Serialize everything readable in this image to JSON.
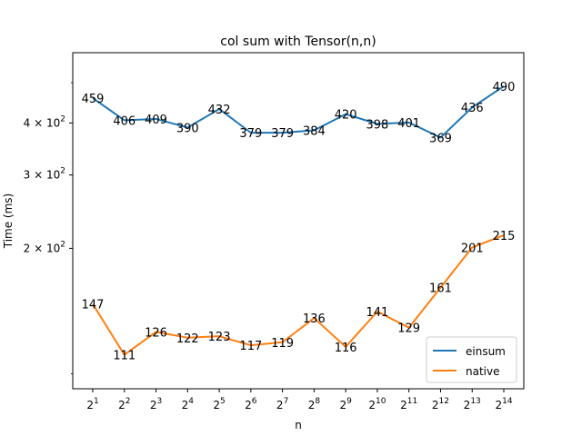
{
  "chart_data": {
    "type": "line",
    "title": "col sum with Tensor(n,n)",
    "xlabel": "n",
    "ylabel": "Time (ms)",
    "x_scale": "log2",
    "y_scale": "log",
    "x": [
      2,
      4,
      8,
      16,
      32,
      64,
      128,
      256,
      512,
      1024,
      2048,
      4096,
      8192,
      16384
    ],
    "x_tick_labels": [
      {
        "base": "2",
        "exp": "1"
      },
      {
        "base": "2",
        "exp": "2"
      },
      {
        "base": "2",
        "exp": "3"
      },
      {
        "base": "2",
        "exp": "4"
      },
      {
        "base": "2",
        "exp": "5"
      },
      {
        "base": "2",
        "exp": "6"
      },
      {
        "base": "2",
        "exp": "7"
      },
      {
        "base": "2",
        "exp": "8"
      },
      {
        "base": "2",
        "exp": "9"
      },
      {
        "base": "2",
        "exp": "10"
      },
      {
        "base": "2",
        "exp": "11"
      },
      {
        "base": "2",
        "exp": "12"
      },
      {
        "base": "2",
        "exp": "13"
      },
      {
        "base": "2",
        "exp": "14"
      }
    ],
    "y_ticks": [
      {
        "value": 200,
        "label": "2 × 10",
        "exp": "2"
      },
      {
        "value": 300,
        "label": "3 × 10",
        "exp": "2"
      },
      {
        "value": 400,
        "label": "4 × 10",
        "exp": "2"
      }
    ],
    "ylim": [
      92,
      590
    ],
    "series": [
      {
        "name": "einsum",
        "color": "#1f77b4",
        "values": [
          459,
          406,
          409,
          390,
          432,
          379,
          379,
          384,
          420,
          398,
          401,
          369,
          436,
          490
        ]
      },
      {
        "name": "native",
        "color": "#ff7f0e",
        "values": [
          147,
          111,
          126,
          122,
          123,
          117,
          119,
          136,
          116,
          141,
          129,
          161,
          201,
          215
        ]
      }
    ],
    "legend_position": "lower-right",
    "grid": false
  }
}
